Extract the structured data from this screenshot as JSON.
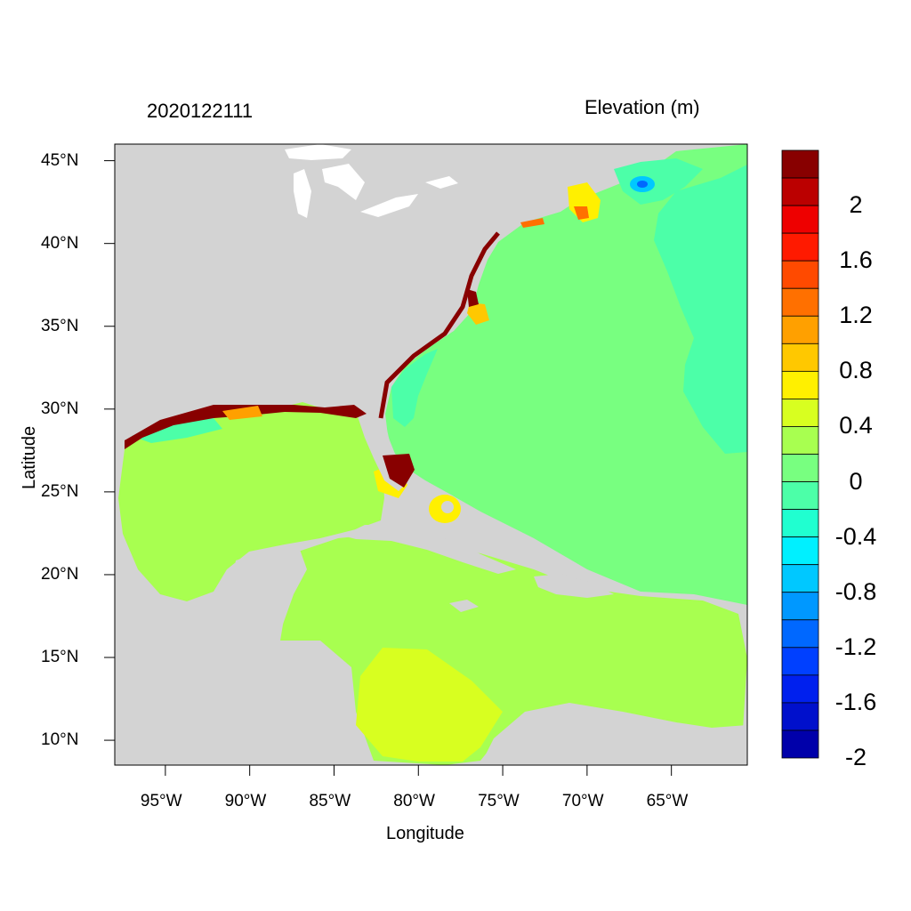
{
  "figure": {
    "time_label": "2020122111",
    "variable_label": "Elevation (m)",
    "xlabel": "Longitude",
    "ylabel": "Latitude"
  },
  "axes": {
    "lon_range": [
      -98,
      -60.5
    ],
    "lat_range": [
      8.5,
      46
    ],
    "x_ticks": [
      {
        "lon": -95,
        "label": "95°W"
      },
      {
        "lon": -90,
        "label": "90°W"
      },
      {
        "lon": -85,
        "label": "85°W"
      },
      {
        "lon": -80,
        "label": "80°W"
      },
      {
        "lon": -75,
        "label": "75°W"
      },
      {
        "lon": -70,
        "label": "70°W"
      },
      {
        "lon": -65,
        "label": "65°W"
      }
    ],
    "y_ticks": [
      {
        "lat": 45,
        "label": "45°N"
      },
      {
        "lat": 40,
        "label": "40°N"
      },
      {
        "lat": 35,
        "label": "35°N"
      },
      {
        "lat": 30,
        "label": "30°N"
      },
      {
        "lat": 25,
        "label": "25°N"
      },
      {
        "lat": 20,
        "label": "20°N"
      },
      {
        "lat": 15,
        "label": "15°N"
      },
      {
        "lat": 10,
        "label": "10°N"
      }
    ]
  },
  "colorbar": {
    "levels_top_to_bottom": [
      "#880000",
      "#bb0000",
      "#ee0000",
      "#ff1a00",
      "#ff4a00",
      "#ff7000",
      "#ffa000",
      "#ffc800",
      "#fff000",
      "#d8ff20",
      "#a8ff50",
      "#78ff80",
      "#4cffa8",
      "#20ffd0",
      "#00f0ff",
      "#00c8ff",
      "#0098ff",
      "#0068ff",
      "#0040ff",
      "#0020ee",
      "#0010cc",
      "#0000aa"
    ],
    "labels": [
      "2",
      "1.6",
      "1.2",
      "0.8",
      "0.4",
      "0",
      "-0.4",
      "-0.8",
      "-1.2",
      "-1.6",
      "-2"
    ]
  },
  "colors": {
    "land": "#d3d3d3",
    "lakes": "#ffffff",
    "open_atlantic": "#78ff80",
    "gulf_caribbean": "#a8ff50",
    "shelf_low": "#4cffa8",
    "surge_high": "#880000"
  }
}
